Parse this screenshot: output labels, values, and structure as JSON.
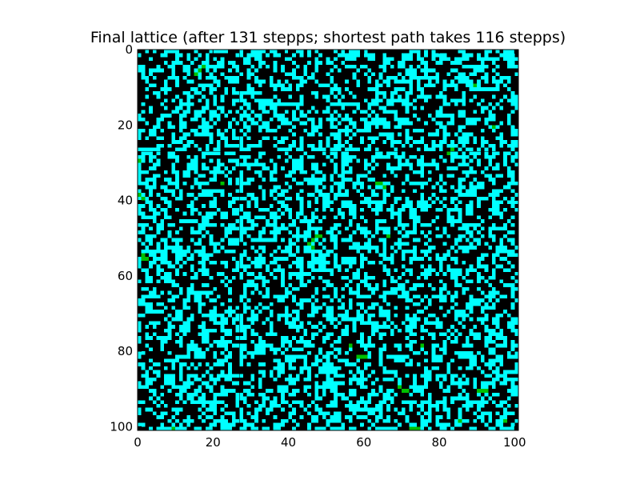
{
  "chart_data": {
    "type": "heatmap",
    "title": "Final lattice (after 131 stepps; shortest path takes 116 stepps)",
    "xlabel": "",
    "ylabel": "",
    "grid_size": [
      101,
      101
    ],
    "xlim": [
      0,
      101
    ],
    "ylim": [
      101,
      0
    ],
    "x_ticks": [
      0,
      20,
      40,
      60,
      80,
      100
    ],
    "y_ticks": [
      0,
      20,
      40,
      60,
      80,
      100
    ],
    "grid": false,
    "legend": "none",
    "colors": {
      "empty": "#000000",
      "occupied": "#00ffff",
      "path": "#00c000"
    },
    "occupied_fraction": 0.42,
    "path_cells": [
      [
        4,
        17
      ],
      [
        5,
        16
      ],
      [
        6,
        15
      ],
      [
        9,
        89
      ],
      [
        20,
        94
      ],
      [
        26,
        83
      ],
      [
        27,
        82
      ],
      [
        29,
        0
      ],
      [
        35,
        22
      ],
      [
        35,
        63
      ],
      [
        35,
        64
      ],
      [
        36,
        65
      ],
      [
        38,
        0
      ],
      [
        39,
        1
      ],
      [
        49,
        47
      ],
      [
        50,
        46
      ],
      [
        51,
        45
      ],
      [
        52,
        46
      ],
      [
        49,
        48
      ],
      [
        49,
        66
      ],
      [
        54,
        1
      ],
      [
        55,
        2
      ],
      [
        55,
        1
      ],
      [
        78,
        56
      ],
      [
        81,
        58
      ],
      [
        81,
        59
      ],
      [
        81,
        60
      ],
      [
        78,
        75
      ],
      [
        89,
        69
      ],
      [
        90,
        70
      ],
      [
        90,
        71
      ],
      [
        90,
        90
      ],
      [
        90,
        91
      ],
      [
        90,
        92
      ],
      [
        98,
        85
      ],
      [
        98,
        97
      ],
      [
        100,
        9
      ],
      [
        100,
        72
      ],
      [
        100,
        73
      ],
      [
        100,
        74
      ]
    ]
  }
}
